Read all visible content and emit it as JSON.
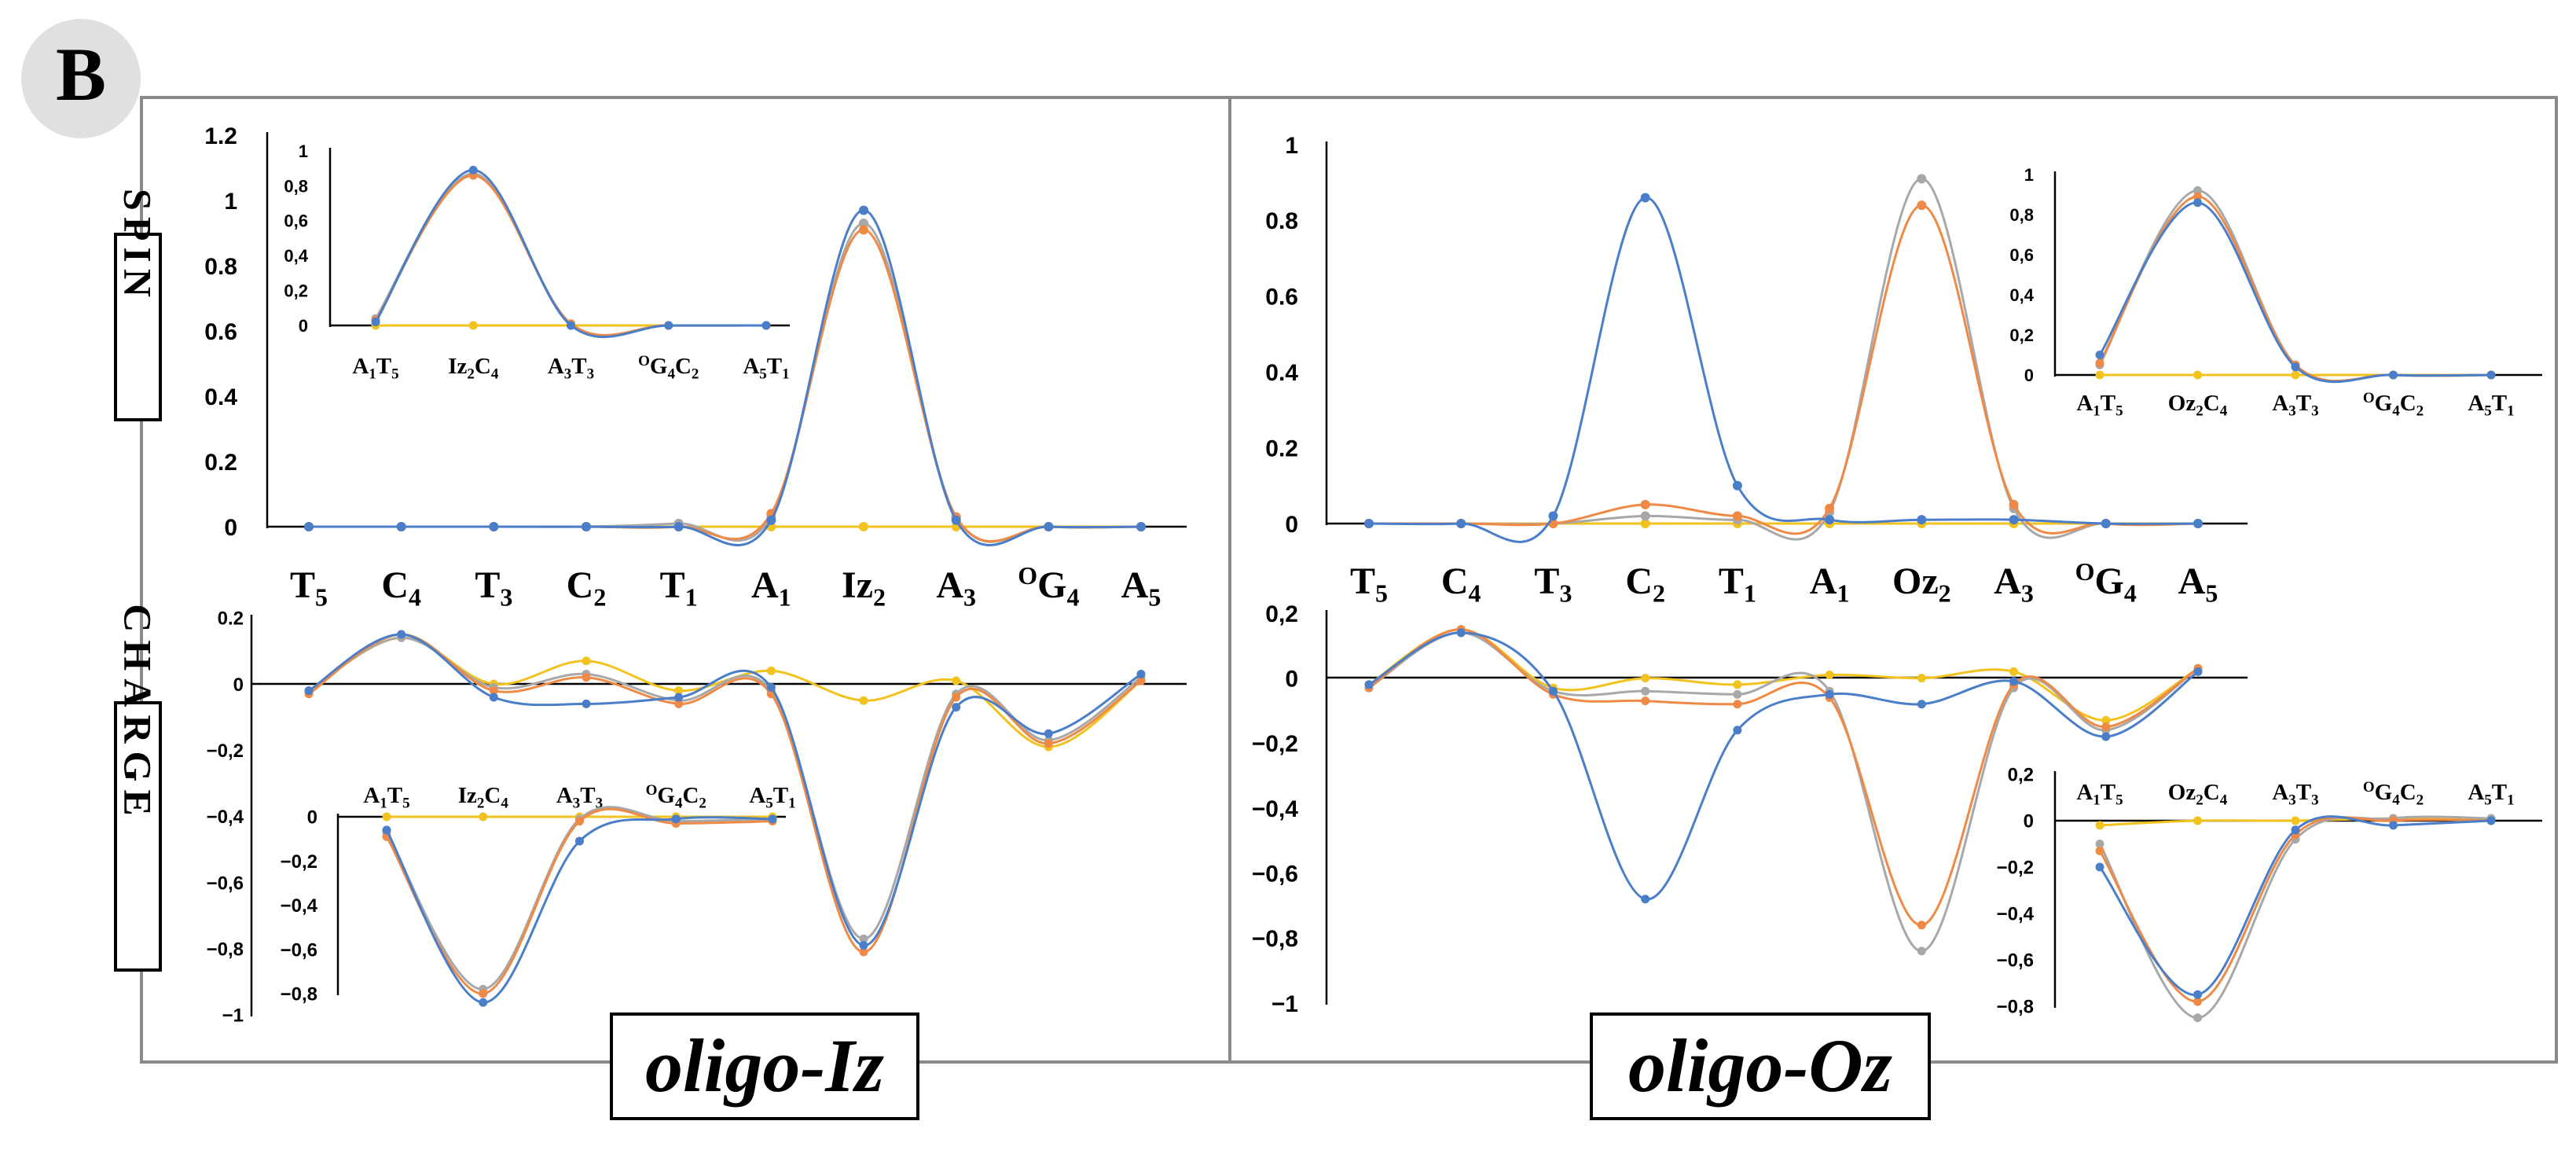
{
  "panel_label": "B",
  "side_labels": {
    "spin": "SPIN",
    "charge": "CHARGE"
  },
  "titles": {
    "iz": "oligo-Iz",
    "oz": "oligo-Oz"
  },
  "series_colors": [
    "#4a7ec8",
    "#ef8a46",
    "#a8a8a8",
    "#f2c21f"
  ],
  "chart_data": [
    {
      "id": "iz_spin_main",
      "type": "line",
      "title": "oligo-Iz",
      "categories": [
        "T5",
        "C4",
        "T3",
        "C2",
        "T1",
        "A1",
        "Iz2",
        "A3",
        "OG4",
        "A5"
      ],
      "ylim": [
        0,
        1.2
      ],
      "yticks": [
        0,
        0.2,
        0.4,
        0.6,
        0.8,
        1,
        1.2
      ],
      "ytick_labels": [
        "0",
        "0.2",
        "0.4",
        "0.6",
        "0.8",
        "1",
        "1.2"
      ],
      "series": [
        {
          "values": [
            0,
            0,
            0,
            0,
            0,
            0.02,
            0.97,
            0.02,
            0,
            0
          ]
        },
        {
          "values": [
            0,
            0,
            0,
            0,
            0,
            0.04,
            0.91,
            0.03,
            0,
            0
          ]
        },
        {
          "values": [
            0,
            0,
            0,
            0,
            0.01,
            0.03,
            0.93,
            0.03,
            0,
            0
          ]
        },
        {
          "values": [
            0,
            0,
            0,
            0,
            0,
            0,
            0,
            0,
            0,
            0
          ]
        }
      ]
    },
    {
      "id": "iz_spin_inset",
      "type": "line",
      "categories": [
        "A1T5",
        "Iz2C4",
        "A3T3",
        "OG4C2",
        "A5T1"
      ],
      "ylim": [
        0,
        1
      ],
      "yticks": [
        0,
        0.2,
        0.4,
        0.6,
        0.8,
        1
      ],
      "ytick_labels": [
        "0",
        "0,2",
        "0,4",
        "0,6",
        "0,8",
        "1"
      ],
      "series": [
        {
          "values": [
            0.02,
            0.89,
            0,
            0,
            0
          ]
        },
        {
          "values": [
            0.03,
            0.86,
            0.01,
            0,
            0
          ]
        },
        {
          "values": [
            0.04,
            0.87,
            0.01,
            0,
            0
          ]
        },
        {
          "values": [
            0,
            0,
            0,
            0,
            0
          ]
        }
      ]
    },
    {
      "id": "iz_charge_main",
      "type": "line",
      "categories": [
        "T5",
        "C4",
        "T3",
        "C2",
        "T1",
        "A1",
        "Iz2",
        "A3",
        "OG4",
        "A5"
      ],
      "ylim": [
        -1,
        0.2
      ],
      "yticks": [
        -1,
        -0.8,
        -0.6,
        -0.4,
        -0.2,
        0,
        0.2
      ],
      "ytick_labels": [
        "−1",
        "−0,8",
        "−0,6",
        "−0,4",
        "−0,2",
        "0",
        "0.2"
      ],
      "series": [
        {
          "values": [
            -0.02,
            0.15,
            -0.04,
            -0.06,
            -0.04,
            -0.01,
            -0.79,
            -0.07,
            -0.15,
            0.03
          ]
        },
        {
          "values": [
            -0.03,
            0.15,
            -0.02,
            0.02,
            -0.06,
            -0.03,
            -0.81,
            -0.04,
            -0.18,
            0.01
          ]
        },
        {
          "values": [
            -0.02,
            0.14,
            -0.01,
            0.03,
            -0.05,
            -0.02,
            -0.77,
            -0.03,
            -0.17,
            0.02
          ]
        },
        {
          "values": [
            -0.02,
            0.14,
            0,
            0.07,
            -0.02,
            0.04,
            -0.05,
            0.01,
            -0.19,
            0.01
          ]
        }
      ]
    },
    {
      "id": "iz_charge_inset",
      "type": "line",
      "categories": [
        "A1T5",
        "Iz2C4",
        "A3T3",
        "OG4C2",
        "A5T1"
      ],
      "ylim": [
        -0.8,
        0
      ],
      "yticks": [
        -0.8,
        -0.6,
        -0.4,
        -0.2,
        0
      ],
      "ytick_labels": [
        "−0,8",
        "−0,6",
        "−0,4",
        "−0,2",
        "0"
      ],
      "series": [
        {
          "values": [
            -0.06,
            -0.84,
            -0.11,
            -0.01,
            -0.01
          ]
        },
        {
          "values": [
            -0.09,
            -0.8,
            -0.02,
            -0.03,
            -0.02
          ]
        },
        {
          "values": [
            -0.07,
            -0.78,
            -0.01,
            -0.02,
            -0.01
          ]
        },
        {
          "values": [
            0,
            0,
            0,
            0,
            0
          ]
        }
      ]
    },
    {
      "id": "oz_spin_main",
      "type": "line",
      "title": "oligo-Oz",
      "categories": [
        "T5",
        "C4",
        "T3",
        "C2",
        "T1",
        "A1",
        "Oz2",
        "A3",
        "OG4",
        "A5"
      ],
      "ylim": [
        0,
        1
      ],
      "yticks": [
        0,
        0.2,
        0.4,
        0.6,
        0.8,
        1
      ],
      "ytick_labels": [
        "0",
        "0.2",
        "0.4",
        "0.6",
        "0.8",
        "1"
      ],
      "series": [
        {
          "values": [
            0,
            0,
            0.02,
            0.86,
            0.1,
            0.01,
            0.01,
            0.01,
            0,
            0
          ]
        },
        {
          "values": [
            0,
            0,
            0,
            0.05,
            0.02,
            0.04,
            0.84,
            0.05,
            0,
            0
          ]
        },
        {
          "values": [
            0,
            0,
            0,
            0.02,
            0.01,
            0.03,
            0.91,
            0.04,
            0,
            0
          ]
        },
        {
          "values": [
            0,
            0,
            0,
            0,
            0,
            0,
            0,
            0,
            0,
            0
          ]
        }
      ]
    },
    {
      "id": "oz_spin_inset",
      "type": "line",
      "categories": [
        "A1T5",
        "Oz2C4",
        "A3T3",
        "OG4C2",
        "A5T1"
      ],
      "ylim": [
        0,
        1
      ],
      "yticks": [
        0,
        0.2,
        0.4,
        0.6,
        0.8,
        1
      ],
      "ytick_labels": [
        "0",
        "0,2",
        "0,4",
        "0,6",
        "0,8",
        "1"
      ],
      "series": [
        {
          "values": [
            0.1,
            0.86,
            0.04,
            0,
            0
          ]
        },
        {
          "values": [
            0.06,
            0.89,
            0.05,
            0,
            0
          ]
        },
        {
          "values": [
            0.05,
            0.92,
            0.05,
            0,
            0
          ]
        },
        {
          "values": [
            0,
            0,
            0,
            0,
            0
          ]
        }
      ]
    },
    {
      "id": "oz_charge_main",
      "type": "line",
      "categories": [
        "T5",
        "C4",
        "T3",
        "C2",
        "T1",
        "A1",
        "Oz2",
        "A3",
        "OG4",
        "A5"
      ],
      "ylim": [
        -1,
        0.2
      ],
      "yticks": [
        -1,
        -0.8,
        -0.6,
        -0.4,
        -0.2,
        0,
        0.2
      ],
      "ytick_labels": [
        "−1",
        "−0,8",
        "−0,6",
        "−0,4",
        "−0,2",
        "0",
        "0,2"
      ],
      "series": [
        {
          "values": [
            -0.02,
            0.14,
            -0.04,
            -0.68,
            -0.16,
            -0.05,
            -0.08,
            -0.01,
            -0.18,
            0.02
          ]
        },
        {
          "values": [
            -0.03,
            0.15,
            -0.05,
            -0.07,
            -0.08,
            -0.06,
            -0.76,
            -0.02,
            -0.15,
            0.03
          ]
        },
        {
          "values": [
            -0.03,
            0.14,
            -0.04,
            -0.04,
            -0.05,
            -0.04,
            -0.84,
            -0.03,
            -0.16,
            0.03
          ]
        },
        {
          "values": [
            -0.02,
            0.15,
            -0.03,
            0,
            -0.02,
            0.01,
            0,
            0.02,
            -0.13,
            0.03
          ]
        }
      ]
    },
    {
      "id": "oz_charge_inset",
      "type": "line",
      "categories": [
        "A1T5",
        "Oz2C4",
        "A3T3",
        "OG4C2",
        "A5T1"
      ],
      "ylim": [
        -0.8,
        0.2
      ],
      "yticks": [
        -0.8,
        -0.6,
        -0.4,
        -0.2,
        0,
        0.2
      ],
      "ytick_labels": [
        "−0,8",
        "−0,6",
        "−0,4",
        "−0,2",
        "0",
        "0,2"
      ],
      "series": [
        {
          "values": [
            -0.2,
            -0.75,
            -0.04,
            -0.02,
            0
          ]
        },
        {
          "values": [
            -0.13,
            -0.78,
            -0.06,
            0,
            0
          ]
        },
        {
          "values": [
            -0.1,
            -0.85,
            -0.08,
            0.01,
            0.01
          ]
        },
        {
          "values": [
            -0.02,
            0,
            0,
            0.01,
            0.01
          ]
        }
      ]
    }
  ]
}
